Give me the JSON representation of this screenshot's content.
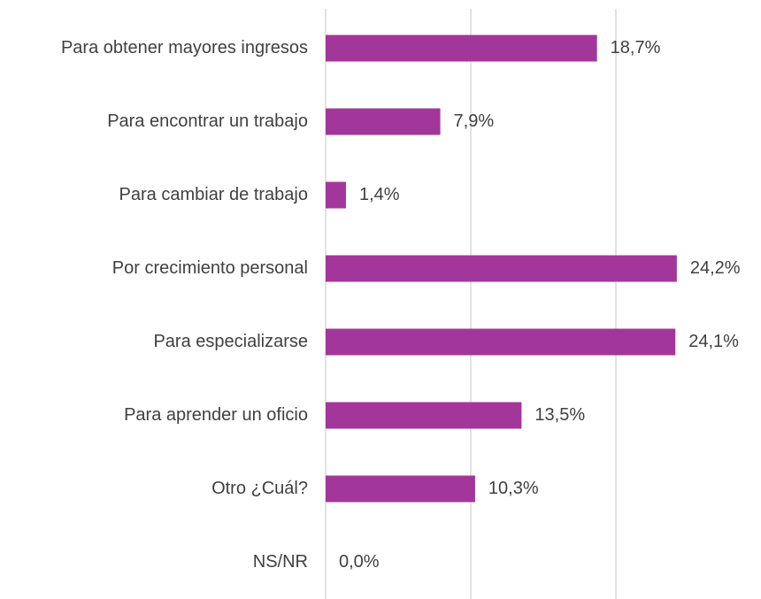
{
  "chart_data": {
    "type": "barh",
    "categories": [
      "Para obtener mayores ingresos",
      "Para encontrar un trabajo",
      "Para cambiar de trabajo",
      "Por crecimiento personal",
      "Para especializarse",
      "Para aprender un oficio",
      "Otro ¿Cuál?",
      "NS/NR"
    ],
    "values": [
      18.7,
      7.9,
      1.4,
      24.2,
      24.1,
      13.5,
      10.3,
      0.0
    ],
    "value_labels": [
      "18,7%",
      "7,9%",
      "1,4%",
      "24,2%",
      "24,1%",
      "13,5%",
      "10,3%",
      "0,0%"
    ],
    "color": "#a3369a",
    "xlim": [
      0,
      30
    ],
    "xticks": [
      0,
      10,
      20
    ],
    "grid": true
  }
}
